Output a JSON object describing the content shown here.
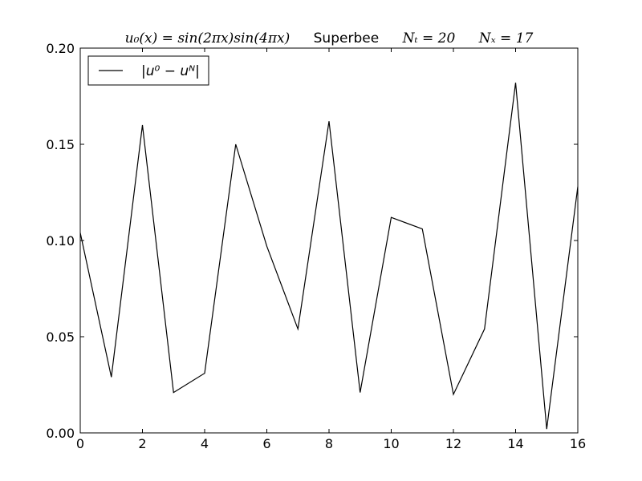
{
  "chart_data": {
    "type": "line",
    "title": {
      "formula": "u₀(x) = sin(2πx)sin(4πx)",
      "scheme": "Superbee",
      "nt": "Nₜ = 20",
      "nx": "Nₓ = 17"
    },
    "xlabel": "",
    "ylabel": "",
    "xlim": [
      0,
      16
    ],
    "ylim": [
      0,
      0.2
    ],
    "x_ticks": [
      {
        "value": 0,
        "label": "0"
      },
      {
        "value": 2,
        "label": "2"
      },
      {
        "value": 4,
        "label": "4"
      },
      {
        "value": 6,
        "label": "6"
      },
      {
        "value": 8,
        "label": "8"
      },
      {
        "value": 10,
        "label": "10"
      },
      {
        "value": 12,
        "label": "12"
      },
      {
        "value": 14,
        "label": "14"
      },
      {
        "value": 16,
        "label": "16"
      }
    ],
    "y_ticks": [
      {
        "value": 0,
        "label": "0.00"
      },
      {
        "value": 0.05,
        "label": "0.05"
      },
      {
        "value": 0.1,
        "label": "0.10"
      },
      {
        "value": 0.15,
        "label": "0.15"
      },
      {
        "value": 0.2,
        "label": "0.20"
      }
    ],
    "grid": false,
    "legend_position": "top-left",
    "series": [
      {
        "name": "|u⁰ − uᴺ|",
        "color": "#000000",
        "x": [
          0,
          1,
          2,
          3,
          4,
          5,
          6,
          7,
          8,
          9,
          10,
          11,
          12,
          13,
          14,
          15,
          16
        ],
        "y": [
          0.104,
          0.029,
          0.16,
          0.021,
          0.031,
          0.15,
          0.097,
          0.054,
          0.162,
          0.021,
          0.112,
          0.106,
          0.02,
          0.054,
          0.182,
          0.002,
          0.128
        ]
      }
    ]
  }
}
